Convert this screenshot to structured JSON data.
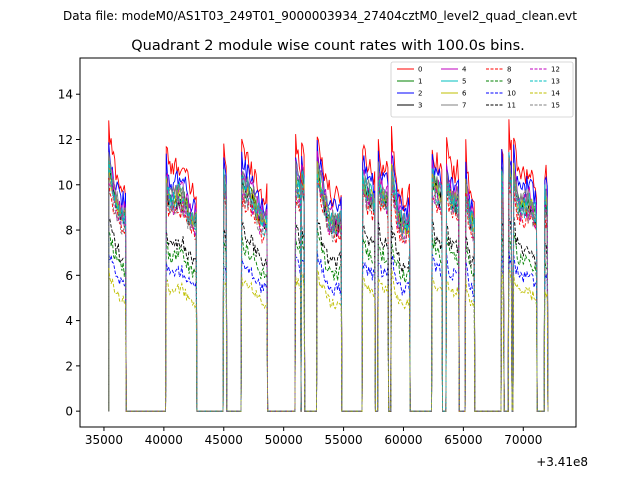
{
  "chart_data": {
    "type": "line",
    "suptitle": "Data file: modeM0/AS1T03_249T01_9000003934_27404cztM0_level2_quad_clean.evt",
    "title": "Quadrant 2 module wise count rates with 100.0s bins.",
    "xlabel": "",
    "ylabel": "",
    "x_offset_label": "+3.41e8",
    "xlim": [
      33000,
      74400
    ],
    "ylim": [
      -0.7,
      15.6
    ],
    "x_ticks": [
      35000,
      40000,
      45000,
      50000,
      55000,
      60000,
      65000,
      70000
    ],
    "x_tick_labels": [
      "35000",
      "40000",
      "45000",
      "50000",
      "55000",
      "60000",
      "65000",
      "70000"
    ],
    "y_ticks": [
      0,
      2,
      4,
      6,
      8,
      10,
      12,
      14
    ],
    "y_tick_labels": [
      "0",
      "2",
      "4",
      "6",
      "8",
      "10",
      "12",
      "14"
    ],
    "grid": false,
    "legend_position": "top-right",
    "legend_columns": 4,
    "on_segments": [
      [
        35400,
        36800
      ],
      [
        40200,
        42700
      ],
      [
        45000,
        45200
      ],
      [
        46500,
        48600
      ],
      [
        51000,
        51400
      ],
      [
        51500,
        51700
      ],
      [
        52800,
        54800
      ],
      [
        56600,
        57600
      ],
      [
        57900,
        58700
      ],
      [
        59000,
        60500
      ],
      [
        62400,
        63200
      ],
      [
        63600,
        64600
      ],
      [
        65200,
        65900
      ],
      [
        68200,
        68350
      ],
      [
        68800,
        69000
      ],
      [
        69200,
        71100
      ],
      [
        71800,
        72000
      ]
    ],
    "series": [
      {
        "name": "0",
        "color": "#ff0000",
        "dash": "solid",
        "level": 1.16
      },
      {
        "name": "1",
        "color": "#008000",
        "dash": "solid",
        "level": 1.02
      },
      {
        "name": "2",
        "color": "#0000ff",
        "dash": "solid",
        "level": 1.1
      },
      {
        "name": "3",
        "color": "#000000",
        "dash": "solid",
        "level": 1.0
      },
      {
        "name": "4",
        "color": "#bf00bf",
        "dash": "solid",
        "level": 1.05
      },
      {
        "name": "5",
        "color": "#00bfbf",
        "dash": "solid",
        "level": 1.03
      },
      {
        "name": "6",
        "color": "#bfbf00",
        "dash": "solid",
        "level": 1.01
      },
      {
        "name": "7",
        "color": "#808080",
        "dash": "solid",
        "level": 1.04
      },
      {
        "name": "8",
        "color": "#ff0000",
        "dash": "dashed",
        "level": 0.95
      },
      {
        "name": "9",
        "color": "#008000",
        "dash": "dashed",
        "level": 0.74
      },
      {
        "name": "10",
        "color": "#0000ff",
        "dash": "dashed",
        "level": 0.66
      },
      {
        "name": "11",
        "color": "#000000",
        "dash": "dashed",
        "level": 0.8
      },
      {
        "name": "12",
        "color": "#bf00bf",
        "dash": "dashed",
        "level": 0.98
      },
      {
        "name": "13",
        "color": "#00bfbf",
        "dash": "dashed",
        "level": 1.0
      },
      {
        "name": "14",
        "color": "#bfbf00",
        "dash": "dashed",
        "level": 0.58
      },
      {
        "name": "15",
        "color": "#808080",
        "dash": "dashed",
        "level": 0.97
      }
    ]
  }
}
